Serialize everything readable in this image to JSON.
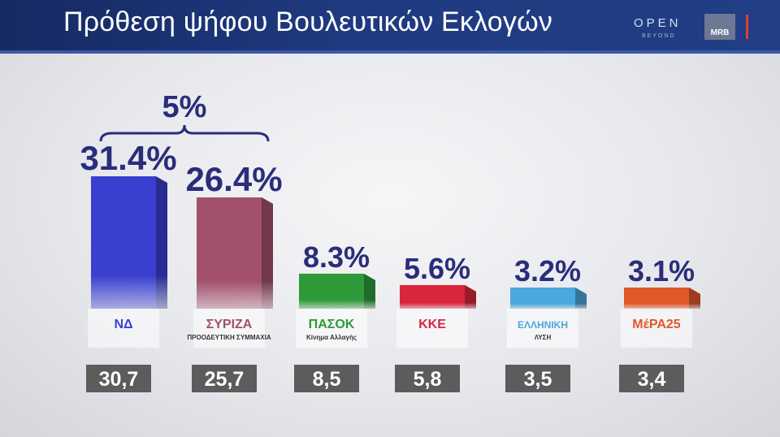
{
  "header": {
    "title": "Πρόθεση ψήφου Βουλευτικών Εκλογών",
    "channel_logo": "OPEN",
    "channel_tagline": "BEYOND",
    "pollster_logo": "MRB"
  },
  "colors": {
    "nd": "#3a3fcf",
    "syriza": "#a3506c",
    "pasok": "#2e9a3a",
    "kke": "#d9263c",
    "elliniki_lysi": "#4aa8dc",
    "mera25": "#e2572a",
    "label_text": "#2a2d7a"
  },
  "chart_data": {
    "type": "bar",
    "title": "Πρόθεση ψήφου Βουλευτικών Εκλογών",
    "categories": [
      "ΝΔ",
      "ΣΥΡΙΖΑ",
      "ΠΑΣΟΚ",
      "ΚΚΕ",
      "ΕΛΛΗΝΙΚΗ ΛΥΣΗ",
      "ΜέΡΑ25"
    ],
    "series": [
      {
        "values": [
          31.4,
          26.4,
          8.3,
          5.6,
          3.2,
          3.1
        ]
      },
      {
        "values": [
          30.7,
          25.7,
          8.5,
          5.8,
          3.5,
          3.4
        ]
      }
    ],
    "bar_labels": [
      "31.4%",
      "26.4%",
      "8.3%",
      "5.6%",
      "3.2%",
      "3.1%"
    ],
    "box_labels": [
      "30,7",
      "25,7",
      "8,5",
      "5,8",
      "3,5",
      "3,4"
    ],
    "party_logos": [
      {
        "text": "ΝΔ",
        "icon": "nd-logo-icon"
      },
      {
        "text": "ΣΥΡΙΖΑ",
        "sub": "ΠΡΟΟΔΕΥΤΙΚΗ ΣΥΜΜΑΧΙΑ",
        "icon": "syriza-logo-icon"
      },
      {
        "text": "ΠΑΣΟΚ",
        "sub": "Κίνημα Αλλαγής",
        "icon": "pasok-sun-icon"
      },
      {
        "text": "ΚΚΕ",
        "icon": "kke-hammer-sickle-icon"
      },
      {
        "text": "ΕΛΛΗΝΙΚΗ",
        "sub": "ΛΥΣΗ",
        "icon": "elliniki-lysi-emblem-icon"
      },
      {
        "text": "ΜέΡΑ25",
        "icon": "mera25-arrow-icon"
      }
    ],
    "annotation": {
      "text": "5%",
      "between": [
        "ΝΔ",
        "ΣΥΡΙΖΑ"
      ]
    },
    "ylim": [
      0,
      32
    ],
    "grid": false,
    "legend": "none"
  }
}
